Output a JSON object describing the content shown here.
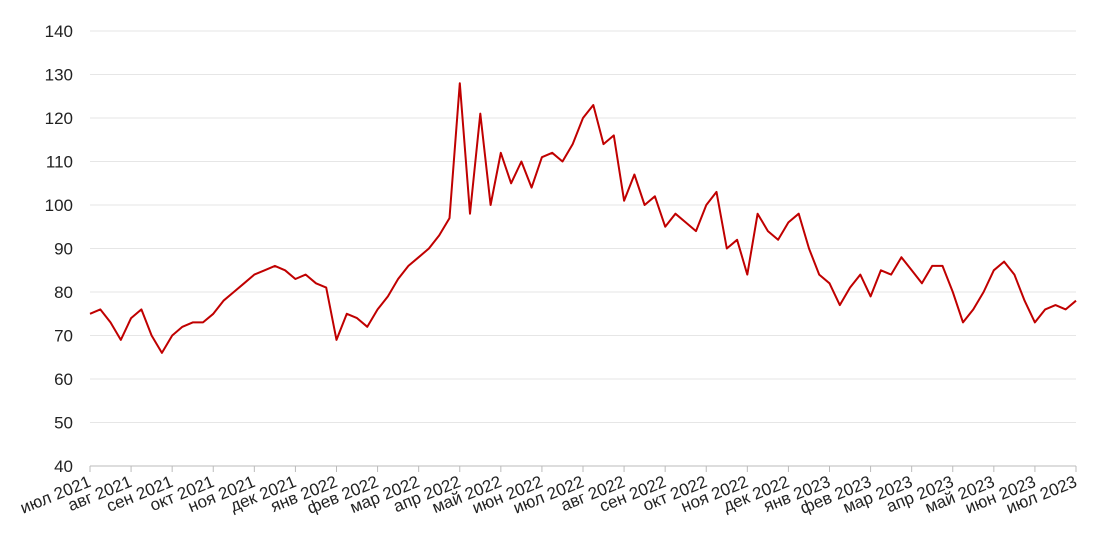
{
  "chart_data": {
    "type": "line",
    "categories": [
      "июл 2021",
      null,
      null,
      null,
      "авг 2021",
      null,
      null,
      null,
      "сен 2021",
      null,
      null,
      null,
      "окт 2021",
      null,
      null,
      null,
      "ноя 2021",
      null,
      null,
      null,
      "дек 2021",
      null,
      null,
      null,
      "янв 2022",
      null,
      null,
      null,
      "фев 2022",
      null,
      null,
      null,
      "мар 2022",
      null,
      null,
      null,
      "апр 2022",
      null,
      null,
      null,
      "май 2022",
      null,
      null,
      null,
      "июн 2022",
      null,
      null,
      null,
      "июл 2022",
      null,
      null,
      null,
      "авг 2022",
      null,
      null,
      null,
      "сен 2022",
      null,
      null,
      null,
      "окт 2022",
      null,
      null,
      null,
      "ноя 2022",
      null,
      null,
      null,
      "дек 2022",
      null,
      null,
      null,
      "янв 2023",
      null,
      null,
      null,
      "фев 2023",
      null,
      null,
      null,
      "мар 2023",
      null,
      null,
      null,
      "апр 2023",
      null,
      null,
      null,
      "май 2023",
      null,
      null,
      null,
      "июн 2023",
      null,
      null,
      null,
      "июл 2023"
    ],
    "series": [
      {
        "color": "#c00000",
        "values": [
          75,
          76,
          73,
          69,
          74,
          76,
          70,
          66,
          70,
          72,
          73,
          73,
          75,
          78,
          80,
          82,
          84,
          85,
          86,
          85,
          83,
          84,
          82,
          81,
          69,
          75,
          74,
          72,
          76,
          79,
          83,
          86,
          88,
          90,
          93,
          97,
          128,
          98,
          121,
          100,
          112,
          105,
          110,
          104,
          111,
          112,
          110,
          114,
          120,
          123,
          114,
          116,
          101,
          107,
          100,
          102,
          95,
          98,
          96,
          94,
          100,
          103,
          90,
          92,
          84,
          98,
          94,
          92,
          96,
          98,
          90,
          84,
          82,
          77,
          81,
          84,
          79,
          85,
          84,
          88,
          85,
          82,
          86,
          86,
          80,
          73,
          76,
          80,
          85,
          87,
          84,
          78,
          73,
          76,
          77,
          76,
          78
        ]
      }
    ],
    "ylim": [
      40,
      140
    ],
    "yticks": [
      40,
      50,
      60,
      70,
      80,
      90,
      100,
      110,
      120,
      130,
      140
    ],
    "grid": true
  }
}
